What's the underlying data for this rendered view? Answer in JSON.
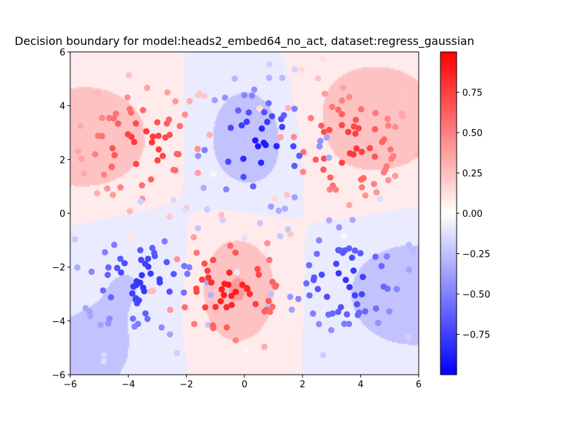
{
  "chart_data": {
    "type": "contour-scatter",
    "title": "Decision boundary for model:heads2_embed64_no_act, dataset:regress_gaussian",
    "xlim": [
      -6,
      6
    ],
    "ylim": [
      -6,
      6
    ],
    "xticks": [
      -6,
      -4,
      -2,
      0,
      2,
      4,
      6
    ],
    "yticks": [
      -6,
      -4,
      -2,
      0,
      2,
      4,
      6
    ],
    "grid": false,
    "colormap": "bwr",
    "colorbar": {
      "vmin": -1.0,
      "vmax": 1.0,
      "ticks": [
        -0.75,
        -0.5,
        -0.25,
        0.0,
        0.25,
        0.5,
        0.75
      ],
      "tick_labels": [
        "−0.75",
        "−0.50",
        "−0.25",
        "0.00",
        "0.25",
        "0.50",
        "0.75"
      ]
    },
    "contour_levels": [
      -0.75,
      -0.5,
      -0.25,
      0.0,
      0.25,
      0.5,
      0.75
    ],
    "field_components": [
      {
        "cx": -5.5,
        "cy": 2.8,
        "amp": 0.5,
        "sx": 1.8,
        "sy": 1.6
      },
      {
        "cx": -0.3,
        "cy": -2.8,
        "amp": 0.55,
        "sx": 1.1,
        "sy": 1.6
      },
      {
        "cx": 0.2,
        "cy": 2.8,
        "amp": -0.5,
        "sx": 1.2,
        "sy": 1.6
      },
      {
        "cx": 5.8,
        "cy": -3.0,
        "amp": -0.5,
        "sx": 1.8,
        "sy": 1.6
      },
      {
        "cx": 4.5,
        "cy": 3.5,
        "amp": 0.45,
        "sx": 2.0,
        "sy": 1.8
      },
      {
        "cx": -5.8,
        "cy": -5.5,
        "amp": -0.4,
        "sx": 1.5,
        "sy": 1.2
      },
      {
        "cx": -4.0,
        "cy": -2.5,
        "amp": -0.25,
        "sx": 1.8,
        "sy": 1.6
      }
    ],
    "point_clusters": [
      {
        "cx": -3.5,
        "cy": 2.5,
        "value": 0.8,
        "n": 70
      },
      {
        "cx": 3.5,
        "cy": 2.5,
        "value": 0.8,
        "n": 70
      },
      {
        "cx": -3.5,
        "cy": -2.5,
        "value": -0.8,
        "n": 70
      },
      {
        "cx": 3.5,
        "cy": -2.5,
        "value": -0.8,
        "n": 70
      },
      {
        "cx": 0.5,
        "cy": 2.5,
        "value": -0.9,
        "n": 55
      },
      {
        "cx": -0.5,
        "cy": -2.8,
        "value": 0.9,
        "n": 55
      }
    ]
  }
}
